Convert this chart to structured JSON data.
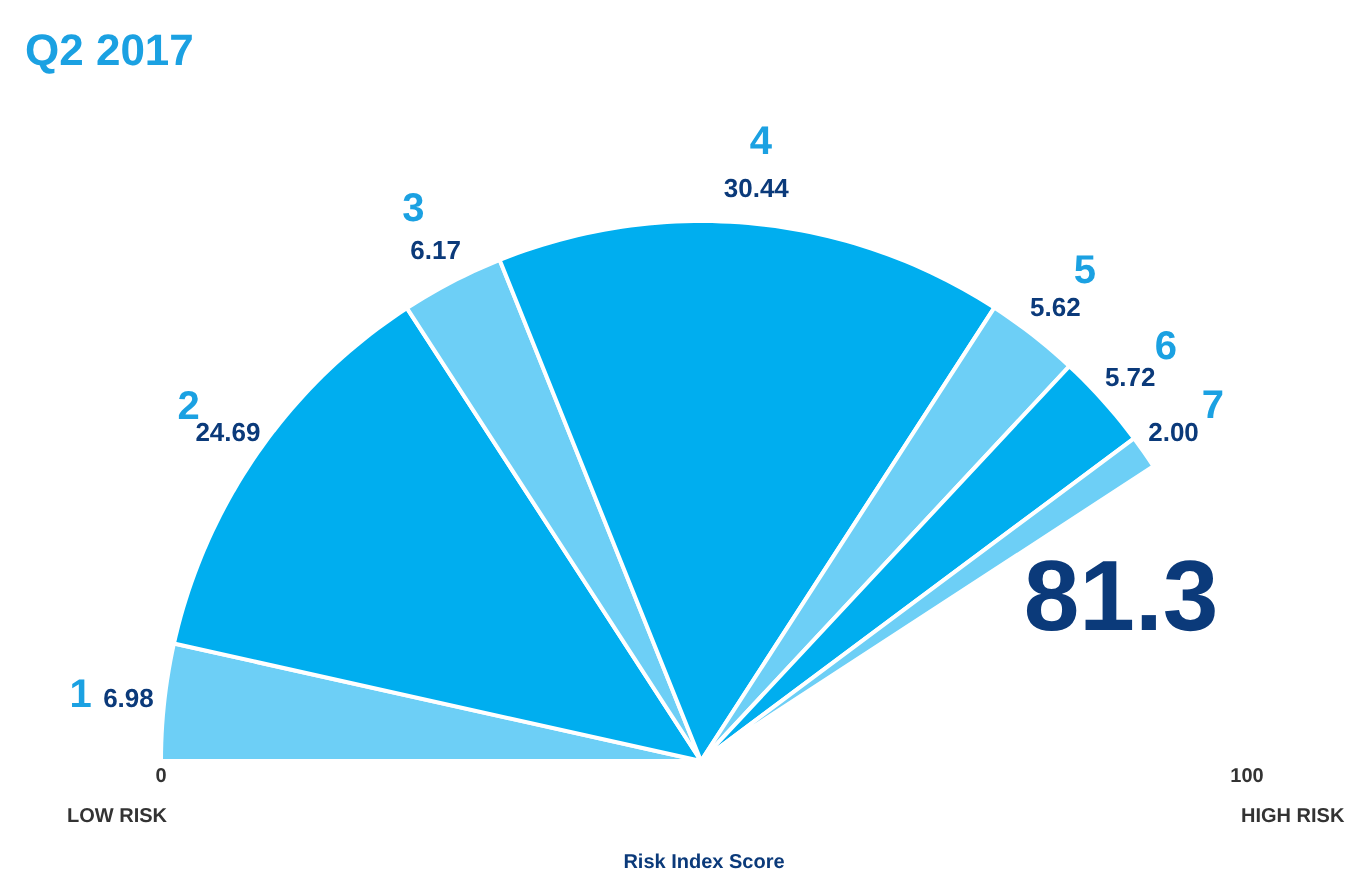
{
  "chart_data": {
    "type": "pie",
    "title": "Q2 2017",
    "categories": [
      "1",
      "2",
      "3",
      "4",
      "5",
      "6",
      "7"
    ],
    "values": [
      6.98,
      24.69,
      6.17,
      30.44,
      5.62,
      5.72,
      2.0
    ],
    "value_labels": [
      "6.98",
      "24.69",
      "6.17",
      "30.44",
      "5.62",
      "5.72",
      "2.00"
    ],
    "colors": [
      "#6dcff6",
      "#00aeef",
      "#6dcff6",
      "#00aeef",
      "#6dcff6",
      "#00aeef",
      "#6dcff6"
    ],
    "annotations": [
      "81.3",
      "0",
      "100",
      "LOW RISK",
      "HIGH RISK",
      "Risk Index Score"
    ]
  }
}
